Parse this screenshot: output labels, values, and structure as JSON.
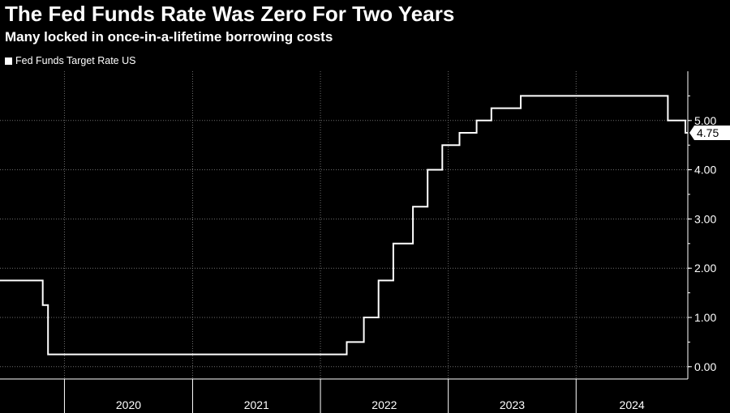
{
  "header": {
    "title": "The Fed Funds Rate Was Zero For Two Years",
    "subtitle": "Many locked in once-in-a-lifetime borrowing costs"
  },
  "colors": {
    "background": "#000000",
    "line": "#ffffff",
    "grid": "#6e6e6e",
    "badge": "#ffffff"
  },
  "chart_data": {
    "type": "line",
    "step": true,
    "title": "The Fed Funds Rate Was Zero For Two Years",
    "subtitle": "Many locked in once-in-a-lifetime borrowing costs",
    "xlabel": "",
    "ylabel": "",
    "x_range": [
      "2019-07-01",
      "2024-11-15"
    ],
    "ylim": [
      -0.25,
      6.0
    ],
    "grid": true,
    "legend_position": "top-left",
    "x_tick_labels": [
      "2020",
      "2021",
      "2022",
      "2023",
      "2024"
    ],
    "y_tick_labels": [
      "0.00",
      "1.00",
      "2.00",
      "3.00",
      "4.00",
      "5.00"
    ],
    "y_tick_values": [
      0,
      1,
      2,
      3,
      4,
      5
    ],
    "last_value_label": "4.75",
    "series": [
      {
        "name": "Fed Funds Target Rate US",
        "points": [
          {
            "x": "2019-07-01",
            "y": 1.75
          },
          {
            "x": "2019-10-31",
            "y": 1.25
          },
          {
            "x": "2019-11-15",
            "y": 0.25
          },
          {
            "x": "2022-03-17",
            "y": 0.5
          },
          {
            "x": "2022-05-05",
            "y": 1.0
          },
          {
            "x": "2022-06-16",
            "y": 1.75
          },
          {
            "x": "2022-07-28",
            "y": 2.5
          },
          {
            "x": "2022-09-22",
            "y": 3.25
          },
          {
            "x": "2022-11-03",
            "y": 4.0
          },
          {
            "x": "2022-12-15",
            "y": 4.5
          },
          {
            "x": "2023-02-02",
            "y": 4.75
          },
          {
            "x": "2023-03-23",
            "y": 5.0
          },
          {
            "x": "2023-05-04",
            "y": 5.25
          },
          {
            "x": "2023-07-27",
            "y": 5.5
          },
          {
            "x": "2024-09-19",
            "y": 5.0
          },
          {
            "x": "2024-11-08",
            "y": 4.75
          },
          {
            "x": "2024-11-15",
            "y": 4.75
          }
        ]
      }
    ]
  }
}
